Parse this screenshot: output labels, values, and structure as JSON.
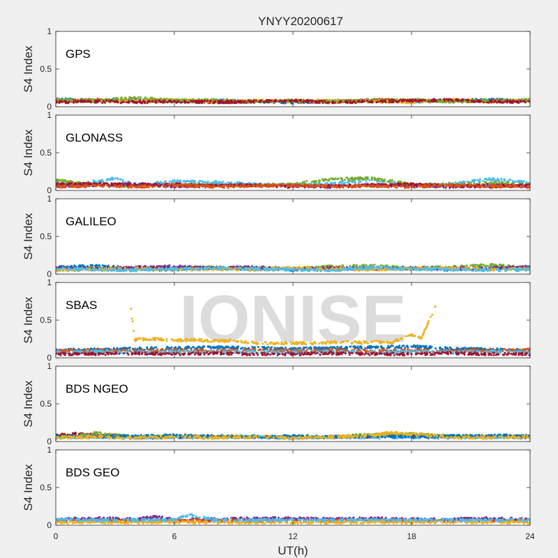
{
  "chart_data": {
    "type": "scatter",
    "title": "YNYY20200617",
    "xlabel": "UT(h)",
    "ylabel": "S4 Index",
    "xlim": [
      0,
      24
    ],
    "ylim": [
      0,
      1
    ],
    "xticks": [
      "0",
      "6",
      "12",
      "18",
      "24"
    ],
    "yticks": [
      "0",
      "0.5",
      "1"
    ],
    "watermark": "IONISE",
    "series_colors": [
      "#0072bd",
      "#d95319",
      "#edb120",
      "#7e2f8e",
      "#77ac30",
      "#4dbeee",
      "#a2142f"
    ],
    "panels": [
      {
        "label": "GPS",
        "series": [
          {
            "color": "#0072bd",
            "x": [
              0,
              2,
              4,
              6,
              8,
              10,
              12,
              14,
              16,
              18,
              20,
              22,
              24
            ],
            "y": [
              0.1,
              0.08,
              0.09,
              0.07,
              0.08,
              0.07,
              0.06,
              0.07,
              0.08,
              0.07,
              0.08,
              0.09,
              0.08
            ]
          },
          {
            "color": "#d95319",
            "x": [
              0,
              2,
              4,
              6,
              8,
              10,
              12,
              14,
              16,
              18,
              20,
              22,
              24
            ],
            "y": [
              0.07,
              0.09,
              0.07,
              0.08,
              0.06,
              0.07,
              0.08,
              0.06,
              0.09,
              0.08,
              0.07,
              0.08,
              0.07
            ]
          },
          {
            "color": "#edb120",
            "x": [
              0,
              2,
              4,
              6,
              8,
              10,
              12,
              14,
              16,
              18,
              20,
              22,
              24
            ],
            "y": [
              0.08,
              0.07,
              0.08,
              0.09,
              0.07,
              0.08,
              0.07,
              0.08,
              0.07,
              0.06,
              0.09,
              0.07,
              0.08
            ]
          },
          {
            "color": "#77ac30",
            "x": [
              0,
              2,
              4,
              6,
              8,
              10,
              12,
              14,
              16,
              18,
              20,
              22,
              24
            ],
            "y": [
              0.09,
              0.08,
              0.12,
              0.08,
              0.09,
              0.07,
              0.08,
              0.07,
              0.08,
              0.09,
              0.07,
              0.08,
              0.09
            ]
          },
          {
            "color": "#a2142f",
            "x": [
              0,
              2,
              4,
              6,
              8,
              10,
              12,
              14,
              16,
              18,
              20,
              22,
              24
            ],
            "y": [
              0.06,
              0.07,
              0.06,
              0.07,
              0.06,
              0.07,
              0.08,
              0.06,
              0.07,
              0.08,
              0.09,
              0.07,
              0.06
            ]
          }
        ]
      },
      {
        "label": "GLONASS",
        "series": [
          {
            "color": "#4dbeee",
            "x": [
              0,
              1,
              2,
              3,
              4,
              6,
              8,
              10,
              12,
              14,
              16,
              18,
              20,
              22,
              24
            ],
            "y": [
              0.09,
              0.08,
              0.12,
              0.16,
              0.07,
              0.12,
              0.11,
              0.08,
              0.07,
              0.09,
              0.14,
              0.07,
              0.09,
              0.15,
              0.1
            ]
          },
          {
            "color": "#77ac30",
            "x": [
              0,
              1,
              2,
              4,
              6,
              8,
              10,
              12,
              14,
              16,
              18,
              20,
              22,
              24
            ],
            "y": [
              0.14,
              0.1,
              0.08,
              0.06,
              0.07,
              0.07,
              0.06,
              0.08,
              0.15,
              0.16,
              0.08,
              0.07,
              0.1,
              0.08
            ]
          },
          {
            "color": "#7e2f8e",
            "x": [
              0,
              2,
              4,
              6,
              8,
              10,
              12,
              14,
              16,
              18,
              20,
              22,
              24
            ],
            "y": [
              0.06,
              0.07,
              0.09,
              0.05,
              0.06,
              0.07,
              0.06,
              0.05,
              0.07,
              0.06,
              0.05,
              0.07,
              0.06
            ]
          },
          {
            "color": "#a2142f",
            "x": [
              0,
              2,
              4,
              6,
              8,
              10,
              12,
              14,
              16,
              18,
              20,
              22,
              24
            ],
            "y": [
              0.08,
              0.09,
              0.07,
              0.08,
              0.06,
              0.07,
              0.05,
              0.06,
              0.07,
              0.08,
              0.06,
              0.05,
              0.07
            ]
          },
          {
            "color": "#d95319",
            "x": [
              0,
              2,
              4,
              6,
              8,
              10,
              12,
              14,
              16,
              18,
              20,
              22,
              24
            ],
            "y": [
              0.05,
              0.06,
              0.05,
              0.07,
              0.05,
              0.06,
              0.07,
              0.05,
              0.06,
              0.05,
              0.07,
              0.06,
              0.05
            ]
          }
        ]
      },
      {
        "label": "GALILEO",
        "series": [
          {
            "color": "#0072bd",
            "x": [
              0,
              1,
              2,
              4,
              6,
              8,
              10,
              12,
              14,
              16,
              18,
              20,
              22,
              24
            ],
            "y": [
              0.09,
              0.1,
              0.11,
              0.07,
              0.06,
              0.08,
              0.07,
              0.06,
              0.07,
              0.08,
              0.07,
              0.06,
              0.07,
              0.09
            ]
          },
          {
            "color": "#77ac30",
            "x": [
              0,
              2,
              4,
              6,
              8,
              10,
              12,
              14,
              16,
              18,
              20,
              22,
              24
            ],
            "y": [
              0.06,
              0.08,
              0.07,
              0.08,
              0.09,
              0.08,
              0.07,
              0.1,
              0.11,
              0.08,
              0.09,
              0.12,
              0.08
            ]
          },
          {
            "color": "#7e2f8e",
            "x": [
              0,
              2,
              4,
              6,
              8,
              10,
              12,
              14,
              16,
              18,
              20,
              22,
              24
            ],
            "y": [
              0.08,
              0.07,
              0.09,
              0.1,
              0.08,
              0.09,
              0.07,
              0.08,
              0.07,
              0.08,
              0.07,
              0.08,
              0.1
            ]
          },
          {
            "color": "#edb120",
            "x": [
              0,
              2,
              4,
              6,
              8,
              10,
              12,
              14,
              16,
              18,
              20,
              22,
              24
            ],
            "y": [
              0.05,
              0.06,
              0.07,
              0.06,
              0.07,
              0.06,
              0.08,
              0.07,
              0.06,
              0.07,
              0.08,
              0.06,
              0.07
            ]
          },
          {
            "color": "#4dbeee",
            "x": [
              0,
              2,
              4,
              6,
              8,
              10,
              12,
              14,
              16,
              18,
              20,
              22,
              24
            ],
            "y": [
              0.07,
              0.06,
              0.05,
              0.07,
              0.08,
              0.07,
              0.06,
              0.05,
              0.09,
              0.07,
              0.06,
              0.05,
              0.06
            ]
          }
        ]
      },
      {
        "label": "SBAS",
        "series": [
          {
            "color": "#edb120",
            "x": [
              3.8,
              4,
              5,
              6,
              7,
              8,
              9,
              10,
              11,
              12,
              13,
              14,
              15,
              16,
              17,
              18,
              18.5,
              19.2
            ],
            "y": [
              0.65,
              0.24,
              0.25,
              0.23,
              0.24,
              0.22,
              0.23,
              0.2,
              0.19,
              0.2,
              0.19,
              0.21,
              0.2,
              0.21,
              0.2,
              0.31,
              0.26,
              0.68
            ]
          },
          {
            "color": "#0072bd",
            "x": [
              0,
              2,
              4,
              6,
              8,
              10,
              12,
              14,
              16,
              18,
              20,
              22,
              24
            ],
            "y": [
              0.1,
              0.11,
              0.12,
              0.13,
              0.14,
              0.13,
              0.12,
              0.13,
              0.14,
              0.15,
              0.12,
              0.11,
              0.1
            ]
          },
          {
            "color": "#d95319",
            "x": [
              0,
              2,
              4,
              6,
              8,
              10,
              12,
              14,
              16,
              18,
              20,
              22,
              24
            ],
            "y": [
              0.09,
              0.1,
              0.09,
              0.1,
              0.09,
              0.1,
              0.09,
              0.1,
              0.09,
              0.1,
              0.09,
              0.1,
              0.11
            ]
          },
          {
            "color": "#4dbeee",
            "x": [
              0,
              2,
              4,
              6,
              8,
              10,
              12,
              14,
              16,
              18,
              20,
              22,
              24
            ],
            "y": [
              0.07,
              0.08,
              0.07,
              0.08,
              0.07,
              0.08,
              0.07,
              0.08,
              0.07,
              0.08,
              0.07,
              0.08,
              0.07
            ]
          },
          {
            "color": "#a2142f",
            "x": [
              0,
              2,
              4,
              6,
              8,
              10,
              12,
              14,
              16,
              18,
              20,
              22,
              24
            ],
            "y": [
              0.05,
              0.05,
              0.06,
              0.05,
              0.06,
              0.05,
              0.05,
              0.06,
              0.05,
              0.05,
              0.06,
              0.05,
              0.05
            ]
          }
        ]
      },
      {
        "label": "BDS NGEO",
        "series": [
          {
            "color": "#a2142f",
            "x": [
              0,
              1,
              2,
              3,
              4,
              6,
              8,
              10,
              12,
              14,
              16,
              18,
              20,
              22,
              24
            ],
            "y": [
              0.08,
              0.1,
              0.09,
              0.08,
              0.05,
              0.06,
              0.07,
              0.06,
              0.05,
              0.06,
              0.07,
              0.08,
              0.06,
              0.07,
              0.06
            ]
          },
          {
            "color": "#77ac30",
            "x": [
              0,
              1,
              2,
              4,
              6,
              8,
              10,
              12,
              14,
              16,
              18,
              20,
              22,
              24
            ],
            "y": [
              0.06,
              0.07,
              0.11,
              0.06,
              0.07,
              0.06,
              0.07,
              0.05,
              0.06,
              0.09,
              0.1,
              0.07,
              0.06,
              0.07
            ]
          },
          {
            "color": "#4dbeee",
            "x": [
              0,
              2,
              4,
              6,
              8,
              10,
              12,
              14,
              16,
              18,
              20,
              22,
              24
            ],
            "y": [
              0.05,
              0.06,
              0.05,
              0.06,
              0.05,
              0.06,
              0.05,
              0.06,
              0.05,
              0.06,
              0.05,
              0.06,
              0.05
            ]
          },
          {
            "color": "#0072bd",
            "x": [
              0,
              2,
              4,
              6,
              8,
              10,
              12,
              14,
              16,
              18,
              20,
              22,
              24
            ],
            "y": [
              0.07,
              0.06,
              0.07,
              0.08,
              0.07,
              0.06,
              0.07,
              0.06,
              0.07,
              0.06,
              0.07,
              0.08,
              0.07
            ]
          },
          {
            "color": "#edb120",
            "x": [
              0,
              2,
              4,
              6,
              8,
              10,
              12,
              14,
              16,
              17,
              18,
              20,
              22,
              24
            ],
            "y": [
              0.05,
              0.06,
              0.05,
              0.06,
              0.05,
              0.06,
              0.05,
              0.06,
              0.08,
              0.12,
              0.1,
              0.06,
              0.05,
              0.06
            ]
          }
        ]
      },
      {
        "label": "BDS GEO",
        "series": [
          {
            "color": "#7e2f8e",
            "x": [
              0,
              2,
              4,
              5,
              6,
              8,
              10,
              12,
              14,
              16,
              18,
              20,
              22,
              24
            ],
            "y": [
              0.08,
              0.09,
              0.08,
              0.11,
              0.08,
              0.08,
              0.09,
              0.09,
              0.08,
              0.09,
              0.08,
              0.08,
              0.09,
              0.08
            ]
          },
          {
            "color": "#d95319",
            "x": [
              0,
              2,
              4,
              6,
              8,
              10,
              12,
              14,
              16,
              18,
              20,
              22,
              24
            ],
            "y": [
              0.06,
              0.06,
              0.06,
              0.06,
              0.06,
              0.06,
              0.06,
              0.06,
              0.06,
              0.06,
              0.06,
              0.06,
              0.06
            ]
          },
          {
            "color": "#edb120",
            "x": [
              0,
              2,
              4,
              6,
              8,
              10,
              12,
              14,
              16,
              18,
              20,
              22,
              24
            ],
            "y": [
              0.04,
              0.04,
              0.04,
              0.04,
              0.04,
              0.04,
              0.04,
              0.04,
              0.04,
              0.04,
              0.04,
              0.04,
              0.04
            ]
          },
          {
            "color": "#4dbeee",
            "x": [
              0,
              2,
              4,
              6,
              6.8,
              8,
              10,
              12,
              14,
              16,
              18,
              20,
              22,
              24
            ],
            "y": [
              0.07,
              0.07,
              0.07,
              0.07,
              0.14,
              0.07,
              0.07,
              0.07,
              0.07,
              0.07,
              0.07,
              0.07,
              0.07,
              0.07
            ]
          }
        ]
      }
    ]
  }
}
